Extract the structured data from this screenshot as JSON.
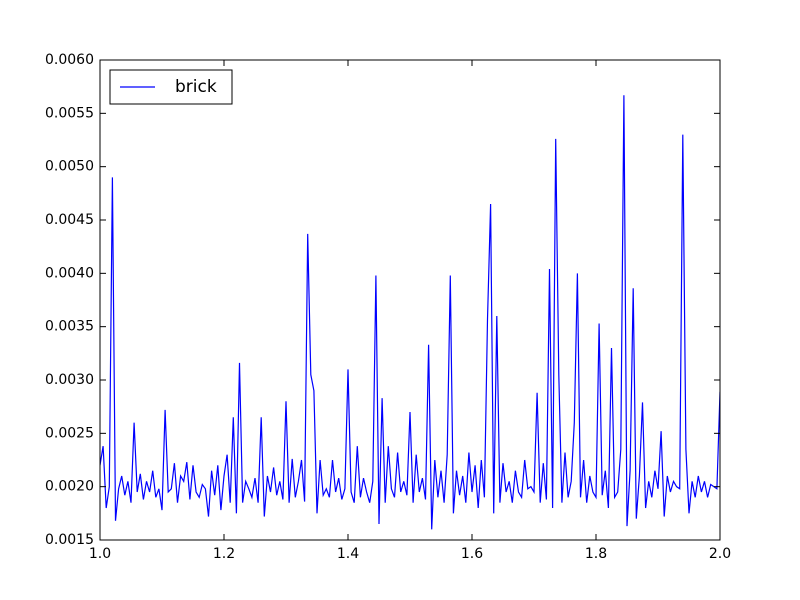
{
  "chart_data": {
    "type": "line",
    "x": [
      1.0,
      1.005,
      1.01,
      1.015,
      1.02,
      1.025,
      1.03,
      1.035,
      1.04,
      1.045,
      1.05,
      1.055,
      1.06,
      1.065,
      1.07,
      1.075,
      1.08,
      1.085,
      1.09,
      1.095,
      1.1,
      1.105,
      1.11,
      1.115,
      1.12,
      1.125,
      1.13,
      1.135,
      1.14,
      1.145,
      1.15,
      1.155,
      1.16,
      1.165,
      1.17,
      1.175,
      1.18,
      1.185,
      1.19,
      1.195,
      1.2,
      1.205,
      1.21,
      1.215,
      1.22,
      1.225,
      1.23,
      1.235,
      1.24,
      1.245,
      1.25,
      1.255,
      1.26,
      1.265,
      1.27,
      1.275,
      1.28,
      1.285,
      1.29,
      1.295,
      1.3,
      1.305,
      1.31,
      1.315,
      1.32,
      1.325,
      1.33,
      1.335,
      1.34,
      1.345,
      1.35,
      1.355,
      1.36,
      1.365,
      1.37,
      1.375,
      1.38,
      1.385,
      1.39,
      1.395,
      1.4,
      1.405,
      1.41,
      1.415,
      1.42,
      1.425,
      1.43,
      1.435,
      1.44,
      1.445,
      1.45,
      1.455,
      1.46,
      1.465,
      1.47,
      1.475,
      1.48,
      1.485,
      1.49,
      1.495,
      1.5,
      1.505,
      1.51,
      1.515,
      1.52,
      1.525,
      1.53,
      1.535,
      1.54,
      1.545,
      1.55,
      1.555,
      1.56,
      1.565,
      1.57,
      1.575,
      1.58,
      1.585,
      1.59,
      1.595,
      1.6,
      1.605,
      1.61,
      1.615,
      1.62,
      1.625,
      1.63,
      1.635,
      1.64,
      1.645,
      1.65,
      1.655,
      1.66,
      1.665,
      1.67,
      1.675,
      1.68,
      1.685,
      1.69,
      1.695,
      1.7,
      1.705,
      1.71,
      1.715,
      1.72,
      1.725,
      1.73,
      1.735,
      1.74,
      1.745,
      1.75,
      1.755,
      1.76,
      1.765,
      1.77,
      1.775,
      1.78,
      1.785,
      1.79,
      1.795,
      1.8,
      1.805,
      1.81,
      1.815,
      1.82,
      1.825,
      1.83,
      1.835,
      1.84,
      1.845,
      1.85,
      1.855,
      1.86,
      1.865,
      1.87,
      1.875,
      1.88,
      1.885,
      1.89,
      1.895,
      1.9,
      1.905,
      1.91,
      1.915,
      1.92,
      1.925,
      1.93,
      1.935,
      1.94,
      1.945,
      1.95,
      1.955,
      1.96,
      1.965,
      1.97,
      1.975,
      1.98,
      1.985,
      1.99,
      1.995,
      2.0
    ],
    "series": [
      {
        "name": "brick",
        "color": "#0000ff",
        "values": [
          0.0022,
          0.00238,
          0.0018,
          0.002,
          0.0049,
          0.00168,
          0.00198,
          0.0021,
          0.00192,
          0.00205,
          0.00185,
          0.0026,
          0.00195,
          0.00212,
          0.00188,
          0.00205,
          0.00195,
          0.00215,
          0.0019,
          0.00198,
          0.00178,
          0.00272,
          0.00195,
          0.00198,
          0.00222,
          0.00185,
          0.0021,
          0.00205,
          0.00223,
          0.00188,
          0.0022,
          0.00195,
          0.0019,
          0.00202,
          0.00198,
          0.00172,
          0.00215,
          0.00192,
          0.0022,
          0.00178,
          0.0021,
          0.0023,
          0.00185,
          0.00265,
          0.00175,
          0.00316,
          0.00185,
          0.00205,
          0.00198,
          0.0019,
          0.00208,
          0.00185,
          0.00265,
          0.00172,
          0.0021,
          0.00195,
          0.00218,
          0.00192,
          0.00205,
          0.00188,
          0.0028,
          0.00185,
          0.00226,
          0.0019,
          0.00205,
          0.00225,
          0.00186,
          0.00437,
          0.00305,
          0.0029,
          0.00175,
          0.00225,
          0.00192,
          0.00198,
          0.0019,
          0.00225,
          0.00195,
          0.00208,
          0.00188,
          0.00198,
          0.0031,
          0.00195,
          0.00185,
          0.00238,
          0.0019,
          0.00208,
          0.00195,
          0.00185,
          0.00205,
          0.00398,
          0.00165,
          0.00283,
          0.00185,
          0.00238,
          0.00198,
          0.0019,
          0.00232,
          0.00195,
          0.00205,
          0.00192,
          0.0027,
          0.00185,
          0.0023,
          0.00195,
          0.00208,
          0.00188,
          0.00333,
          0.0016,
          0.00225,
          0.0019,
          0.00215,
          0.00185,
          0.0023,
          0.00398,
          0.00175,
          0.00215,
          0.00192,
          0.0021,
          0.00185,
          0.00232,
          0.00195,
          0.0022,
          0.0018,
          0.00225,
          0.0019,
          0.00357,
          0.00465,
          0.00175,
          0.0036,
          0.00185,
          0.00222,
          0.00195,
          0.00205,
          0.00185,
          0.00215,
          0.00195,
          0.0019,
          0.00225,
          0.00198,
          0.002,
          0.00195,
          0.00288,
          0.00185,
          0.00222,
          0.00188,
          0.00404,
          0.0018,
          0.00526,
          0.00305,
          0.00185,
          0.00232,
          0.0019,
          0.00205,
          0.0026,
          0.004,
          0.0019,
          0.00225,
          0.00185,
          0.0021,
          0.00195,
          0.0019,
          0.00353,
          0.00192,
          0.00215,
          0.0018,
          0.0033,
          0.0019,
          0.00195,
          0.00235,
          0.00567,
          0.00163,
          0.00215,
          0.00386,
          0.0017,
          0.0021,
          0.00279,
          0.0018,
          0.00205,
          0.0019,
          0.00215,
          0.00198,
          0.00252,
          0.00172,
          0.0021,
          0.00195,
          0.00205,
          0.002,
          0.00198,
          0.0053,
          0.00235,
          0.00175,
          0.00205,
          0.0019,
          0.0021,
          0.00195,
          0.00205,
          0.0019,
          0.00202,
          0.002,
          0.00198,
          0.00289
        ]
      }
    ],
    "xlim": [
      1.0,
      2.0
    ],
    "xticks": [
      {
        "value": 1,
        "label": "1.0"
      },
      1.2,
      1.4,
      1.6,
      1.8,
      {
        "value": 2,
        "label": "2.0"
      }
    ],
    "ylim": [
      0.0015,
      0.006
    ],
    "yticks": [
      0.0015,
      {
        "value": 0.002,
        "label": "0.0020"
      },
      0.0025,
      {
        "value": 0.003,
        "label": "0.0030"
      },
      0.0035,
      {
        "value": 0.004,
        "label": "0.0040"
      },
      0.0045,
      {
        "value": 0.005,
        "label": "0.0050"
      },
      0.0055,
      {
        "value": 0.006,
        "label": "0.0060"
      }
    ],
    "legend": "upper left"
  }
}
